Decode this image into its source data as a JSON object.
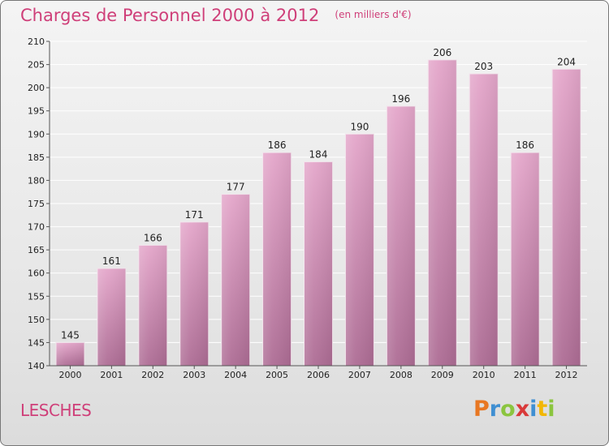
{
  "chart_data": {
    "type": "bar",
    "title": "Charges de Personnel 2000 à 2012",
    "subtitle": "(en milliers d'€)",
    "categories": [
      "2000",
      "2001",
      "2002",
      "2003",
      "2004",
      "2005",
      "2006",
      "2007",
      "2008",
      "2009",
      "2010",
      "2011",
      "2012"
    ],
    "values": [
      145,
      161,
      166,
      171,
      177,
      186,
      184,
      190,
      196,
      206,
      203,
      186,
      204
    ],
    "ylim": [
      140,
      210
    ],
    "yticks": [
      140,
      145,
      150,
      155,
      160,
      165,
      170,
      175,
      180,
      185,
      190,
      195,
      200,
      205,
      210
    ],
    "grid": true,
    "bar_color": "#d484b0"
  },
  "footer": {
    "commune": "LESCHES",
    "logo_letters": [
      "P",
      "r",
      "o",
      "x",
      "i",
      "t",
      "i"
    ],
    "logo_colors": [
      "#e87722",
      "#3f8fd2",
      "#8bc53f",
      "#d93a3a",
      "#3f8fd2",
      "#f2b705",
      "#8bc53f"
    ]
  },
  "colors": {
    "accent": "#cf3f79"
  }
}
